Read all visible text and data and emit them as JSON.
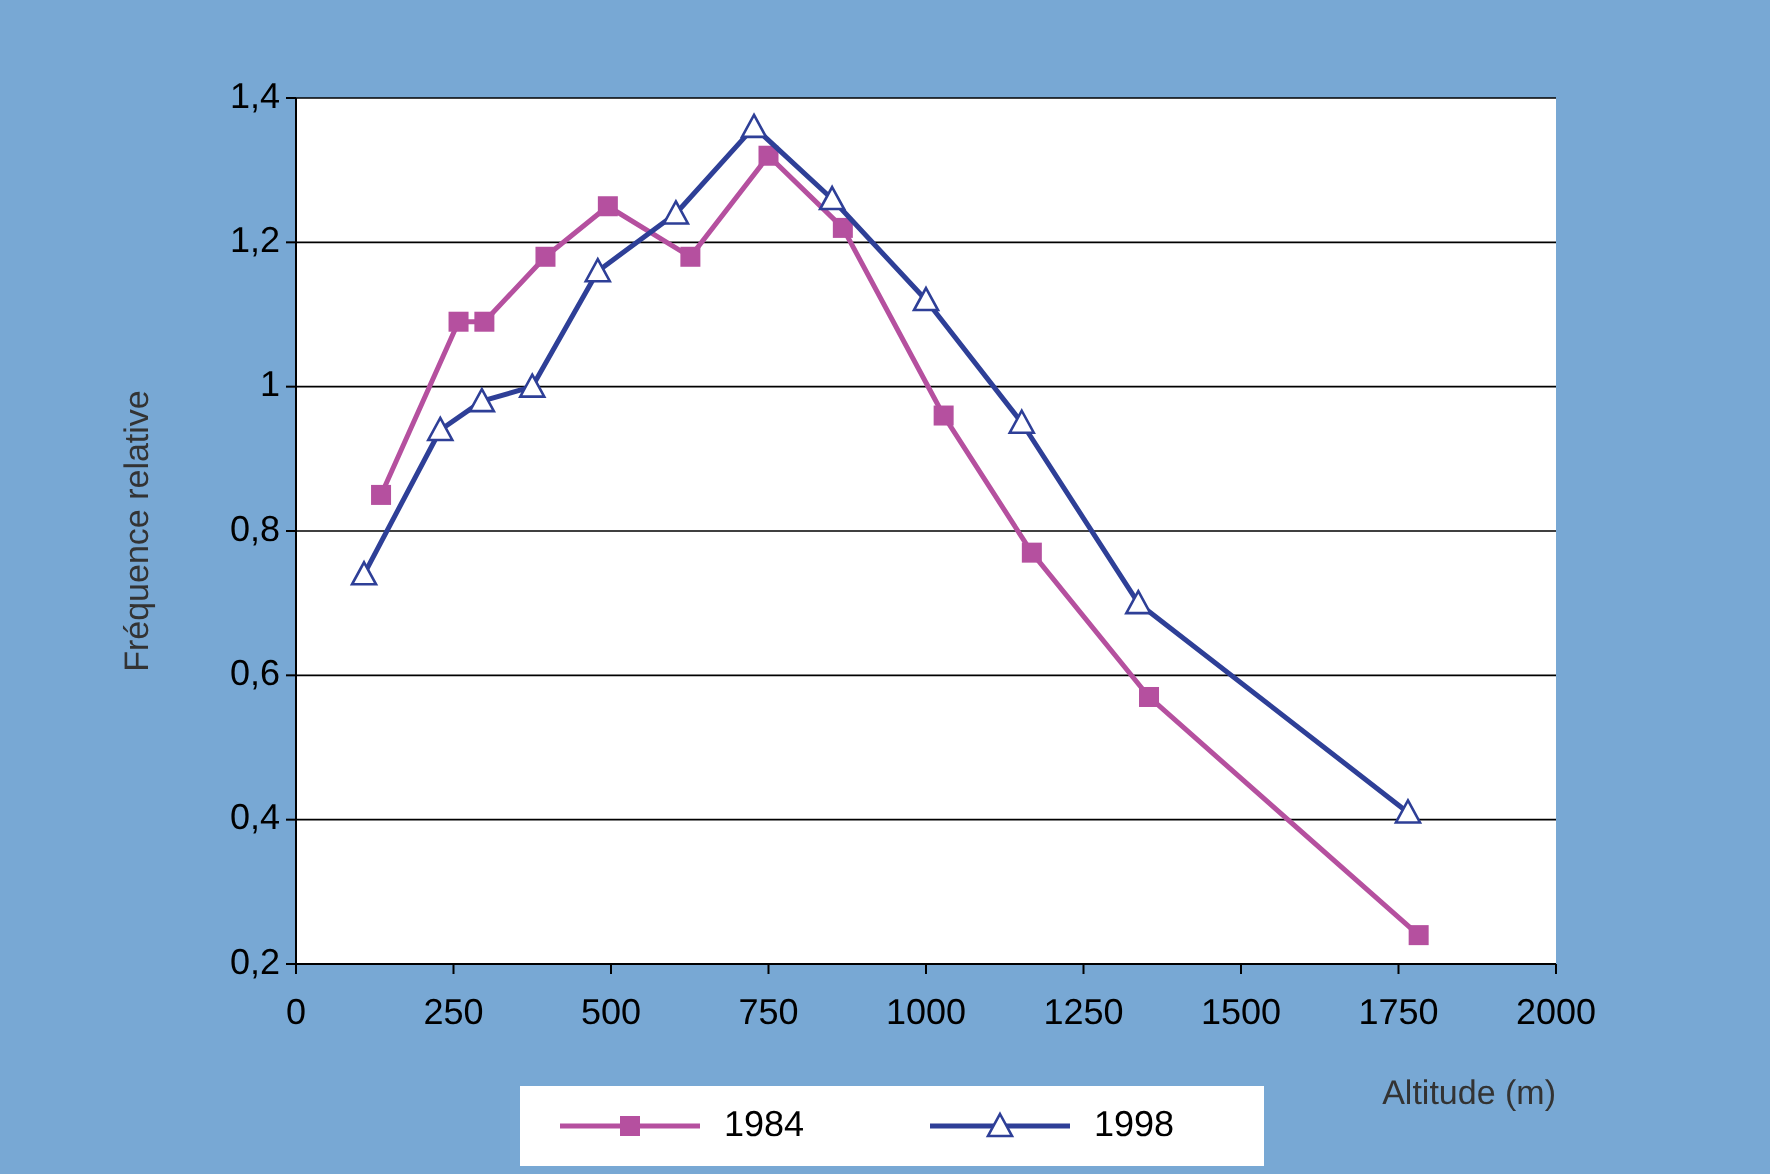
{
  "chart_data": {
    "type": "line",
    "xlabel": "Altitude (m)",
    "ylabel": "Fréquence relative",
    "xlim": [
      0,
      2000
    ],
    "xticks": [
      0,
      250,
      500,
      750,
      1000,
      1250,
      1500,
      1750,
      2000
    ],
    "ylim": [
      0.2,
      1.4
    ],
    "yticks": [
      {
        "value": 0.2,
        "label": "0,2"
      },
      {
        "value": 0.4,
        "label": "0,4"
      },
      {
        "value": 0.6,
        "label": "0,6"
      },
      {
        "value": 0.8,
        "label": "0,8"
      },
      1,
      {
        "value": 1.2,
        "label": "1,2"
      },
      {
        "value": 1.4,
        "label": "1,4"
      }
    ],
    "grid": "y",
    "legend": "bottom",
    "series": [
      {
        "name": "1984",
        "color": "#b5509f",
        "marker": "square",
        "x": [
          135,
          258,
          299,
          396,
          495,
          626,
          750,
          868,
          1028,
          1168,
          1354,
          1782
        ],
        "values": [
          0.85,
          1.09,
          1.09,
          1.18,
          1.25,
          1.18,
          1.32,
          1.22,
          0.96,
          0.77,
          0.57,
          0.24
        ]
      },
      {
        "name": "1998",
        "color": "#2e3f97",
        "marker": "triangle",
        "x": [
          108,
          229,
          295,
          375,
          479,
          603,
          727,
          851,
          1000,
          1152,
          1337,
          1765
        ],
        "values": [
          0.74,
          0.94,
          0.98,
          1.0,
          1.16,
          1.24,
          1.36,
          1.26,
          1.12,
          0.95,
          0.7,
          0.41
        ]
      }
    ]
  }
}
